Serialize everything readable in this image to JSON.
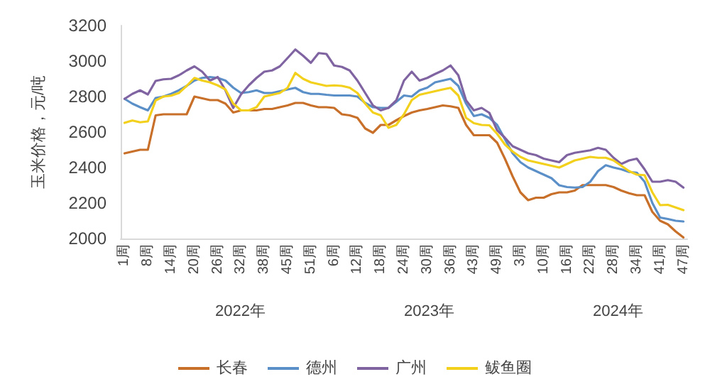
{
  "chart_data": {
    "type": "line",
    "ylabel": "玉米价格，元/吨",
    "categories": [
      "1周",
      null,
      null,
      "8周",
      null,
      null,
      "14周",
      null,
      null,
      "20周",
      null,
      null,
      "26周",
      null,
      null,
      "32周",
      null,
      null,
      "38周",
      null,
      null,
      "45周",
      null,
      null,
      "51周",
      null,
      null,
      "6周",
      null,
      null,
      "12周",
      null,
      null,
      "18周",
      null,
      null,
      "24周",
      null,
      null,
      "30周",
      null,
      null,
      "36周",
      null,
      null,
      "43周",
      null,
      null,
      "49周",
      null,
      null,
      "3周",
      null,
      null,
      "10周",
      null,
      null,
      "16周",
      null,
      null,
      "22周",
      null,
      null,
      "28周",
      null,
      null,
      "34周",
      null,
      null,
      "41周",
      null,
      null,
      "47周"
    ],
    "series": [
      {
        "name": "长春",
        "color": "#c8702a",
        "values": [
          2480,
          2490,
          2500,
          2500,
          2694,
          2700,
          2700,
          2700,
          2700,
          2800,
          2790,
          2780,
          2780,
          2760,
          2710,
          2722,
          2722,
          2722,
          2730,
          2730,
          2740,
          2750,
          2764,
          2764,
          2750,
          2740,
          2740,
          2736,
          2700,
          2694,
          2680,
          2620,
          2596,
          2640,
          2640,
          2666,
          2690,
          2710,
          2722,
          2730,
          2740,
          2750,
          2745,
          2736,
          2640,
          2582,
          2582,
          2582,
          2540,
          2450,
          2350,
          2260,
          2216,
          2230,
          2230,
          2250,
          2260,
          2260,
          2270,
          2301,
          2301,
          2301,
          2301,
          2290,
          2270,
          2255,
          2244,
          2244,
          2150,
          2100,
          2080,
          2040,
          2006
        ]
      },
      {
        "name": "德州",
        "color": "#5b8fc7",
        "values": [
          2787,
          2760,
          2740,
          2722,
          2792,
          2800,
          2815,
          2835,
          2860,
          2890,
          2905,
          2910,
          2905,
          2890,
          2850,
          2820,
          2825,
          2835,
          2820,
          2820,
          2830,
          2840,
          2849,
          2825,
          2815,
          2815,
          2810,
          2806,
          2806,
          2806,
          2800,
          2764,
          2740,
          2736,
          2736,
          2770,
          2806,
          2800,
          2835,
          2850,
          2880,
          2890,
          2900,
          2860,
          2760,
          2690,
          2700,
          2680,
          2640,
          2560,
          2480,
          2430,
          2400,
          2380,
          2360,
          2340,
          2300,
          2290,
          2287,
          2290,
          2320,
          2380,
          2413,
          2400,
          2390,
          2375,
          2371,
          2320,
          2200,
          2118,
          2110,
          2100,
          2096
        ]
      },
      {
        "name": "广州",
        "color": "#8064a2",
        "values": [
          2787,
          2815,
          2835,
          2812,
          2888,
          2897,
          2900,
          2920,
          2947,
          2970,
          2940,
          2890,
          2910,
          2835,
          2736,
          2812,
          2863,
          2905,
          2940,
          2947,
          2970,
          3017,
          3065,
          3030,
          2990,
          3045,
          3040,
          2975,
          2967,
          2947,
          2890,
          2820,
          2750,
          2722,
          2736,
          2778,
          2890,
          2940,
          2890,
          2905,
          2927,
          2947,
          2975,
          2920,
          2778,
          2722,
          2736,
          2708,
          2610,
          2568,
          2520,
          2500,
          2480,
          2470,
          2450,
          2440,
          2430,
          2470,
          2483,
          2490,
          2497,
          2511,
          2500,
          2455,
          2420,
          2440,
          2450,
          2390,
          2320,
          2320,
          2329,
          2320,
          2287
        ]
      },
      {
        "name": "鲅鱼圈",
        "color": "#f2d01c",
        "values": [
          2652,
          2665,
          2655,
          2660,
          2778,
          2800,
          2805,
          2820,
          2860,
          2905,
          2890,
          2880,
          2863,
          2840,
          2760,
          2722,
          2722,
          2740,
          2800,
          2810,
          2820,
          2849,
          2933,
          2900,
          2880,
          2870,
          2860,
          2863,
          2860,
          2850,
          2820,
          2760,
          2710,
          2694,
          2624,
          2640,
          2700,
          2780,
          2810,
          2820,
          2830,
          2840,
          2849,
          2806,
          2680,
          2650,
          2640,
          2638,
          2590,
          2530,
          2490,
          2460,
          2440,
          2430,
          2420,
          2410,
          2400,
          2420,
          2440,
          2450,
          2460,
          2455,
          2455,
          2440,
          2410,
          2380,
          2360,
          2357,
          2260,
          2188,
          2190,
          2175,
          2160
        ]
      }
    ],
    "ylim": [
      2000,
      3200
    ],
    "yticks": [
      2000,
      2200,
      2400,
      2600,
      2800,
      3000,
      3200
    ],
    "annotations": [
      "2022年",
      "2023年",
      "2024年"
    ],
    "legend": "bottom",
    "marker": "none",
    "line_style": "solid",
    "grid": false
  }
}
